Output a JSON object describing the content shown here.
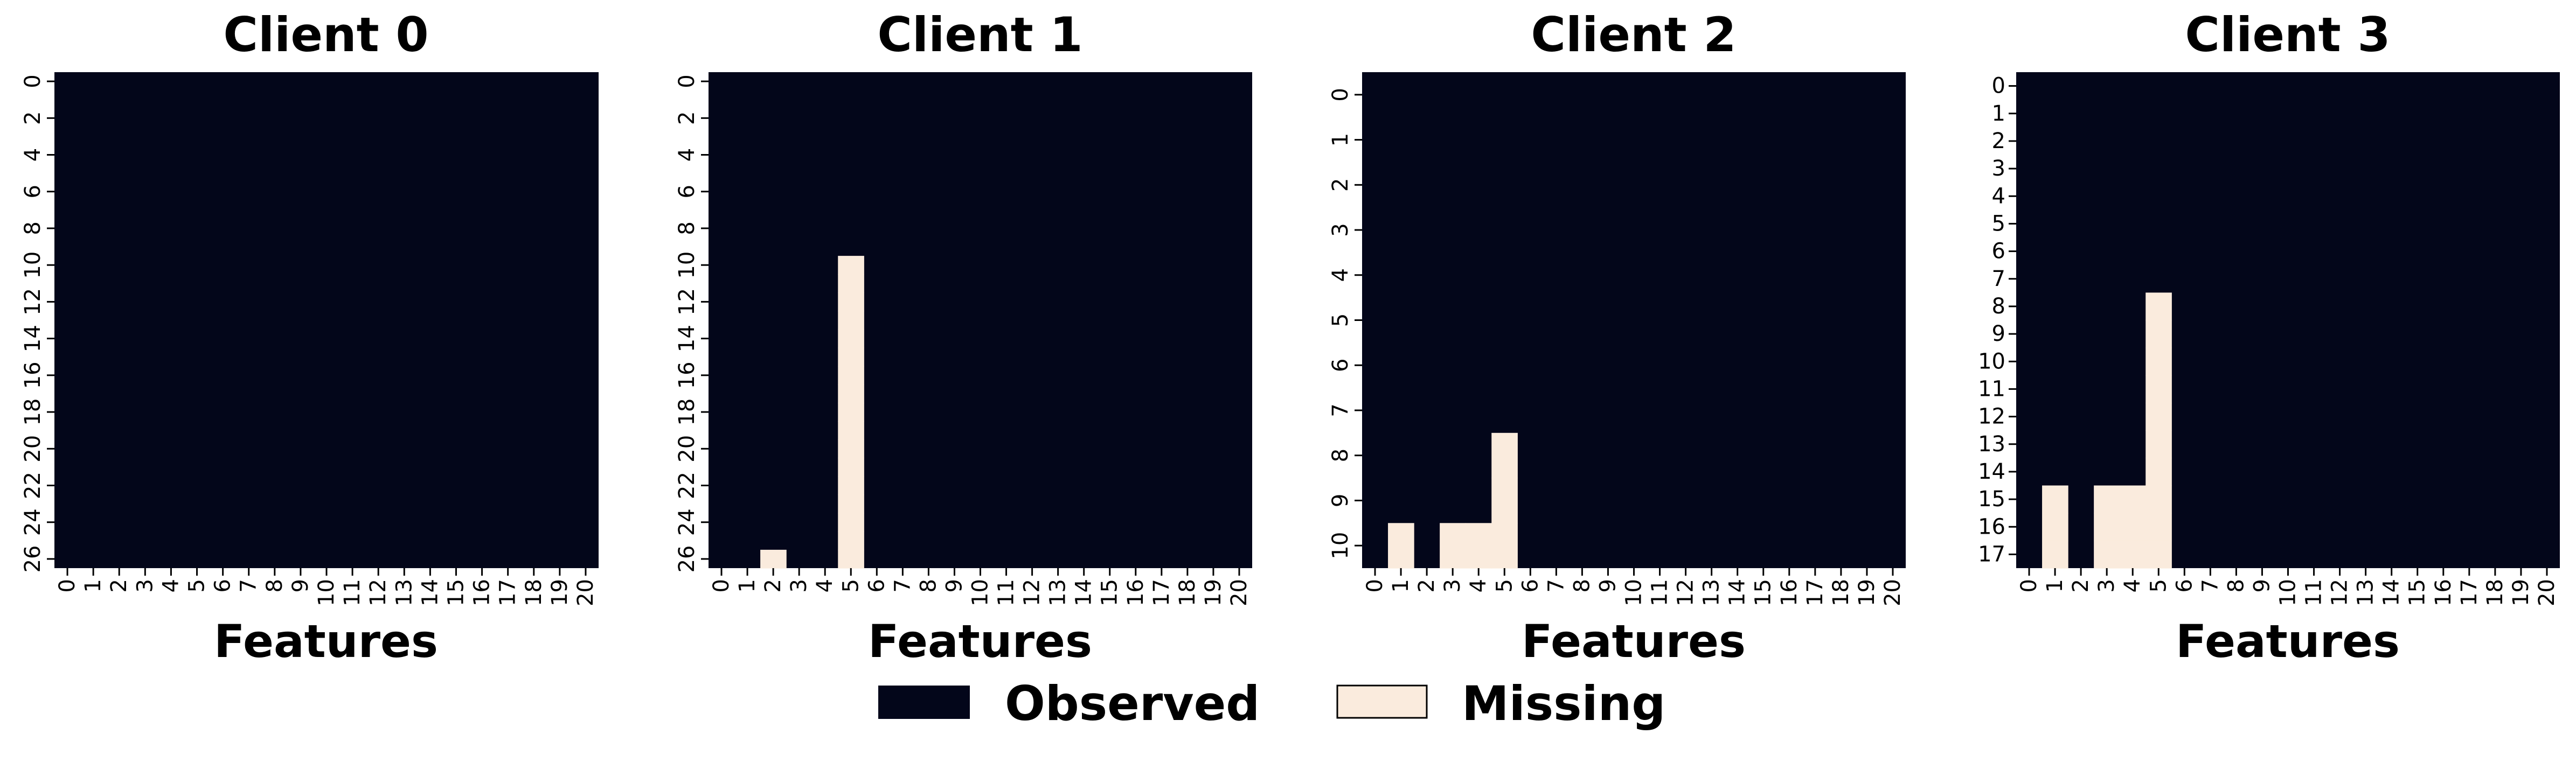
{
  "chart_data": [
    {
      "type": "heatmap",
      "title": "Client 0",
      "xlabel": "Features",
      "ylabel": "",
      "x_ticks": [
        "0",
        "1",
        "2",
        "3",
        "4",
        "5",
        "6",
        "7",
        "8",
        "9",
        "10",
        "11",
        "12",
        "13",
        "14",
        "15",
        "16",
        "17",
        "18",
        "19",
        "20"
      ],
      "y_ticks": [
        "0",
        "2",
        "4",
        "6",
        "8",
        "10",
        "12",
        "14",
        "16",
        "18",
        "20",
        "22",
        "24",
        "26"
      ],
      "n_rows": 27,
      "n_cols": 21,
      "missing_cells": []
    },
    {
      "type": "heatmap",
      "title": "Client 1",
      "xlabel": "Features",
      "ylabel": "",
      "x_ticks": [
        "0",
        "1",
        "2",
        "3",
        "4",
        "5",
        "6",
        "7",
        "8",
        "9",
        "10",
        "11",
        "12",
        "13",
        "14",
        "15",
        "16",
        "17",
        "18",
        "19",
        "20"
      ],
      "y_ticks": [
        "0",
        "2",
        "4",
        "6",
        "8",
        "10",
        "12",
        "14",
        "16",
        "18",
        "20",
        "22",
        "24",
        "26"
      ],
      "n_rows": 27,
      "n_cols": 21,
      "missing_cells": [
        [
          2,
          26
        ],
        [
          5,
          10
        ],
        [
          5,
          11
        ],
        [
          5,
          12
        ],
        [
          5,
          13
        ],
        [
          5,
          14
        ],
        [
          5,
          15
        ],
        [
          5,
          16
        ],
        [
          5,
          17
        ],
        [
          5,
          18
        ],
        [
          5,
          19
        ],
        [
          5,
          20
        ],
        [
          5,
          21
        ],
        [
          5,
          22
        ],
        [
          5,
          23
        ],
        [
          5,
          24
        ],
        [
          5,
          25
        ],
        [
          5,
          26
        ]
      ]
    },
    {
      "type": "heatmap",
      "title": "Client 2",
      "xlabel": "Features",
      "ylabel": "",
      "x_ticks": [
        "0",
        "1",
        "2",
        "3",
        "4",
        "5",
        "6",
        "7",
        "8",
        "9",
        "10",
        "11",
        "12",
        "13",
        "14",
        "15",
        "16",
        "17",
        "18",
        "19",
        "20"
      ],
      "y_ticks": [
        "0",
        "1",
        "2",
        "3",
        "4",
        "5",
        "6",
        "7",
        "8",
        "9",
        "10"
      ],
      "n_rows": 11,
      "n_cols": 21,
      "missing_cells": [
        [
          1,
          10
        ],
        [
          3,
          10
        ],
        [
          4,
          10
        ],
        [
          5,
          8
        ],
        [
          5,
          9
        ],
        [
          5,
          10
        ]
      ]
    },
    {
      "type": "heatmap",
      "title": "Client 3",
      "xlabel": "Features",
      "ylabel": "",
      "x_ticks": [
        "0",
        "1",
        "2",
        "3",
        "4",
        "5",
        "6",
        "7",
        "8",
        "9",
        "10",
        "11",
        "12",
        "13",
        "14",
        "15",
        "16",
        "17",
        "18",
        "19",
        "20"
      ],
      "y_ticks": [
        "0",
        "1",
        "2",
        "3",
        "4",
        "5",
        "6",
        "7",
        "8",
        "9",
        "10",
        "11",
        "12",
        "13",
        "14",
        "15",
        "16",
        "17"
      ],
      "n_rows": 18,
      "n_cols": 21,
      "missing_cells": [
        [
          1,
          15
        ],
        [
          1,
          16
        ],
        [
          1,
          17
        ],
        [
          3,
          15
        ],
        [
          3,
          16
        ],
        [
          3,
          17
        ],
        [
          4,
          15
        ],
        [
          4,
          16
        ],
        [
          4,
          17
        ],
        [
          5,
          8
        ],
        [
          5,
          9
        ],
        [
          5,
          10
        ],
        [
          5,
          11
        ],
        [
          5,
          12
        ],
        [
          5,
          13
        ],
        [
          5,
          14
        ],
        [
          5,
          15
        ],
        [
          5,
          16
        ],
        [
          5,
          17
        ]
      ]
    }
  ],
  "legend": {
    "items": [
      {
        "label": "Observed",
        "color": "#03061a"
      },
      {
        "label": "Missing",
        "color": "#faebdd"
      }
    ]
  },
  "colors": {
    "observed": "#03061a",
    "missing": "#faebdd"
  }
}
